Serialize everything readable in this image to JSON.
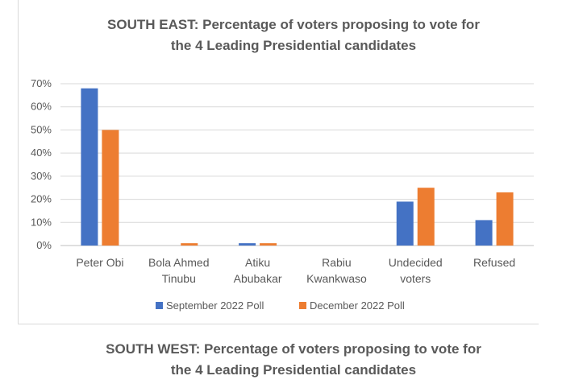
{
  "chart_data": {
    "type": "bar",
    "title_lines": [
      "SOUTH EAST: Percentage of voters proposing to vote for",
      "the 4 Leading Presidential candidates"
    ],
    "categories": [
      [
        "Peter Obi"
      ],
      [
        "Bola Ahmed",
        "Tinubu"
      ],
      [
        "Atiku",
        "Abubakar"
      ],
      [
        "Rabiu",
        "Kwankwaso"
      ],
      [
        "Undecided",
        "voters"
      ],
      [
        "Refused"
      ]
    ],
    "series": [
      {
        "name": "September 2022 Poll",
        "color": "#4472c4",
        "values": [
          68,
          0,
          1,
          0,
          19,
          11
        ]
      },
      {
        "name": "December 2022 Poll",
        "color": "#ed7d31",
        "values": [
          50,
          1,
          1,
          0,
          25,
          23
        ]
      }
    ],
    "y_ticks": [
      "0%",
      "10%",
      "20%",
      "30%",
      "40%",
      "50%",
      "60%",
      "70%"
    ],
    "ylim": [
      0,
      70
    ],
    "grid": true,
    "legend_position": "bottom"
  },
  "second_title_lines": [
    "SOUTH WEST: Percentage of voters proposing to vote for",
    "the 4 Leading Presidential candidates"
  ]
}
